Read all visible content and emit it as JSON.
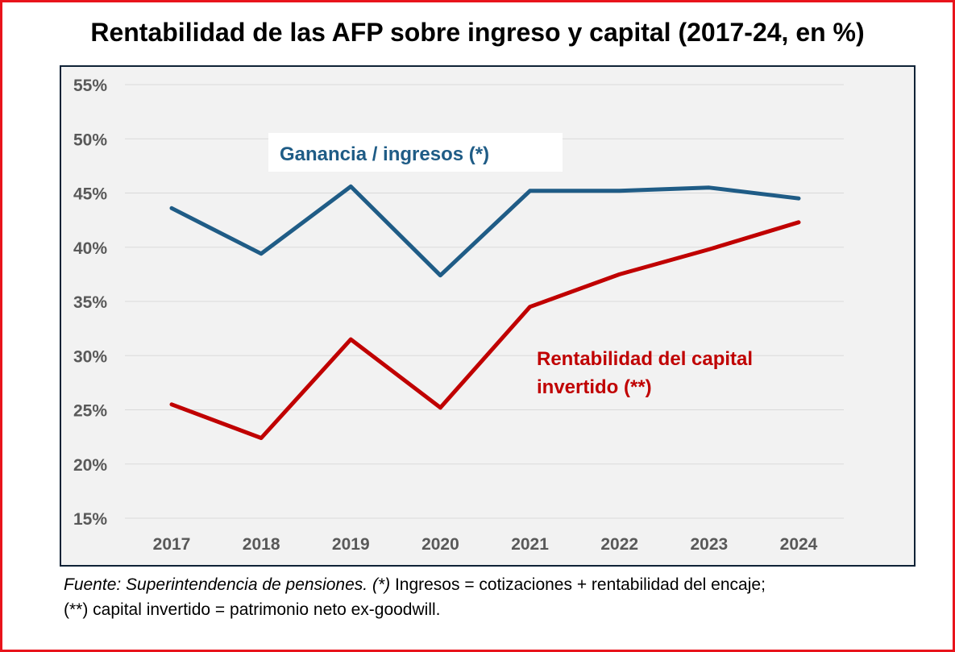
{
  "title": "Rentabilidad de las AFP sobre ingreso y capital (2017-24, en %)",
  "chart_data": {
    "type": "line",
    "title": "Rentabilidad de las AFP sobre ingreso y capital (2017-24, en %)",
    "categories": [
      "2017",
      "2018",
      "2019",
      "2020",
      "2021",
      "2022",
      "2023",
      "2024"
    ],
    "ylim": [
      15,
      55
    ],
    "yticks": [
      15,
      20,
      25,
      30,
      35,
      40,
      45,
      50,
      55
    ],
    "ytick_labels": [
      "15%",
      "20%",
      "25%",
      "30%",
      "35%",
      "40%",
      "45%",
      "50%",
      "55%"
    ],
    "grid": true,
    "legend": "inline labels",
    "series": [
      {
        "name": "Ganancia / ingresos (*)",
        "color": "#1f5c86",
        "values": [
          43.6,
          39.4,
          45.6,
          37.4,
          45.2,
          45.2,
          45.5,
          44.5
        ]
      },
      {
        "name": "Rentabilidad del capital invertido (**)",
        "name_lines": [
          "Rentabilidad del capital",
          "invertido (**)"
        ],
        "color": "#c00000",
        "values": [
          25.5,
          22.4,
          31.5,
          25.2,
          34.5,
          37.5,
          39.8,
          42.3
        ]
      }
    ]
  },
  "source": {
    "italic": "Fuente: Superintendencia de pensiones. (*)",
    "line1_rest": " Ingresos = cotizaciones + rentabilidad del encaje;",
    "line2": "(**) capital invertido = patrimonio neto ex-goodwill."
  },
  "colors": {
    "frame": "#e8141b",
    "plot_border": "#0e2236",
    "plot_background": "#f2f2f2",
    "gridline": "#d9d9d9",
    "tick_text": "#595959"
  }
}
